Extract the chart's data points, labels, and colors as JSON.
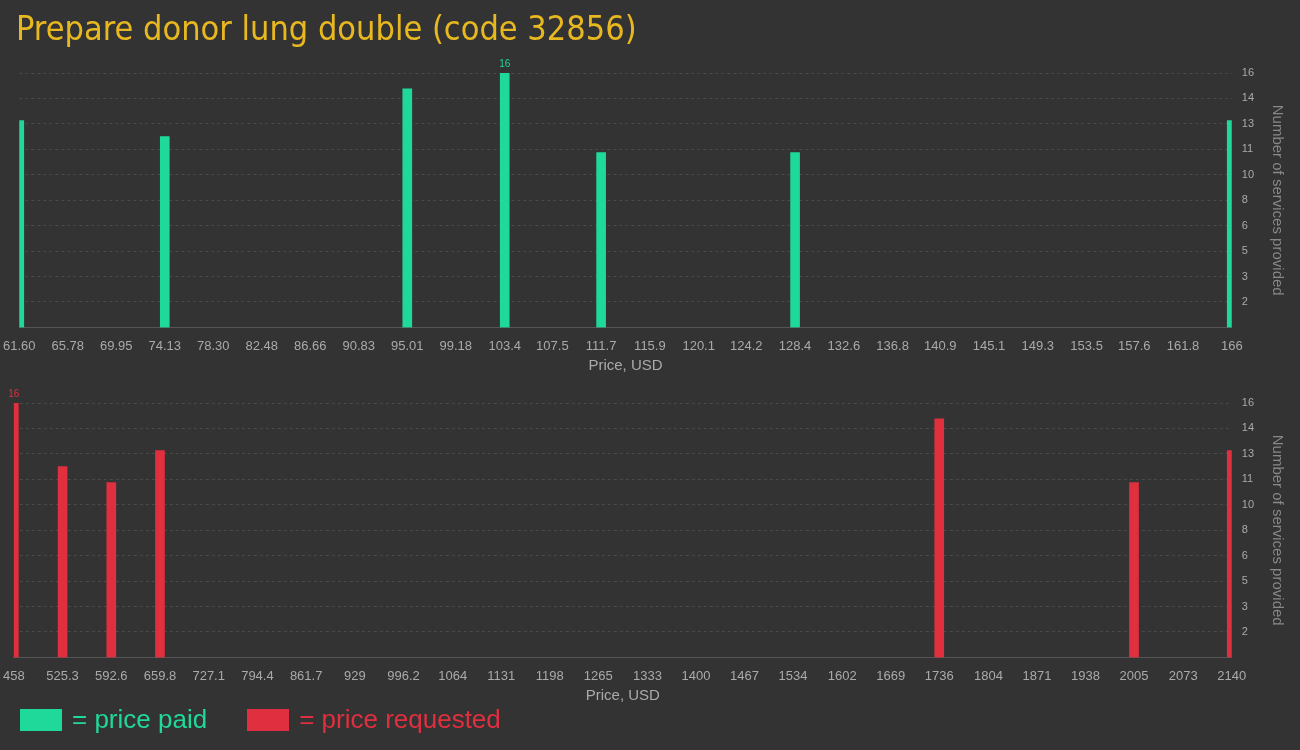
{
  "chart_data": [
    {
      "type": "bar",
      "title": "Prepare donor lung double (code 32856)",
      "xlabel": "Price, USD",
      "ylabel": "Number of services provided",
      "x": [
        61.6,
        74.13,
        95.01,
        103.4,
        111.7,
        128.4,
        166
      ],
      "series": [
        {
          "name": "= price paid",
          "color": "#1fd99b",
          "values": [
            13,
            12,
            15,
            16,
            11,
            11,
            13
          ],
          "value_labels": [
            null,
            null,
            null,
            "16",
            null,
            null,
            null
          ]
        }
      ],
      "xlim": [
        61.6,
        166
      ],
      "xticks": [
        {
          "value": 61.6,
          "label": "61.60"
        },
        65.78,
        69.95,
        74.13,
        {
          "value": 78.3,
          "label": "78.30"
        },
        82.48,
        86.66,
        90.83,
        95.01,
        99.18,
        103.4,
        107.5,
        111.7,
        115.9,
        120.1,
        124.2,
        128.4,
        132.6,
        136.8,
        140.9,
        145.1,
        149.3,
        153.5,
        157.6,
        161.8,
        166
      ],
      "ylim": [
        0,
        16
      ],
      "yticks": [
        {
          "value": 1.6,
          "label": "2"
        },
        {
          "value": 3.2,
          "label": "3"
        },
        {
          "value": 4.8,
          "label": "5"
        },
        {
          "value": 6.4,
          "label": "6"
        },
        {
          "value": 8,
          "label": "8"
        },
        {
          "value": 9.6,
          "label": "10"
        },
        {
          "value": 11.2,
          "label": "11"
        },
        {
          "value": 12.8,
          "label": "13"
        },
        {
          "value": 14.4,
          "label": "14"
        },
        {
          "value": 16,
          "label": "16"
        }
      ],
      "grid": "y",
      "legend": "bottom left"
    },
    {
      "type": "bar",
      "xlabel": "Price, USD",
      "ylabel": "Number of services provided",
      "x": [
        458,
        525.3,
        592.6,
        659.8,
        1736,
        2005,
        2140
      ],
      "series": [
        {
          "name": "= price requested",
          "color": "#e02f3f",
          "values": [
            16,
            12,
            11,
            13,
            15,
            11,
            13
          ],
          "value_labels": [
            "16",
            null,
            null,
            null,
            null,
            null,
            null
          ]
        }
      ],
      "xlim": [
        458,
        2140
      ],
      "xticks": [
        458,
        525.3,
        592.6,
        659.8,
        727.1,
        794.4,
        861.7,
        929,
        996.2,
        1064,
        1131,
        1198,
        1265,
        1333,
        1400,
        1467,
        1534,
        1602,
        1669,
        1736,
        1804,
        1871,
        1938,
        2005,
        2073,
        2140
      ],
      "ylim": [
        0,
        16
      ],
      "yticks": [
        {
          "value": 1.6,
          "label": "2"
        },
        {
          "value": 3.2,
          "label": "3"
        },
        {
          "value": 4.8,
          "label": "5"
        },
        {
          "value": 6.4,
          "label": "6"
        },
        {
          "value": 8,
          "label": "8"
        },
        {
          "value": 9.6,
          "label": "10"
        },
        {
          "value": 11.2,
          "label": "11"
        },
        {
          "value": 12.8,
          "label": "13"
        },
        {
          "value": 14.4,
          "label": "14"
        },
        {
          "value": 16,
          "label": "16"
        }
      ],
      "grid": "y",
      "legend": "bottom left"
    }
  ]
}
